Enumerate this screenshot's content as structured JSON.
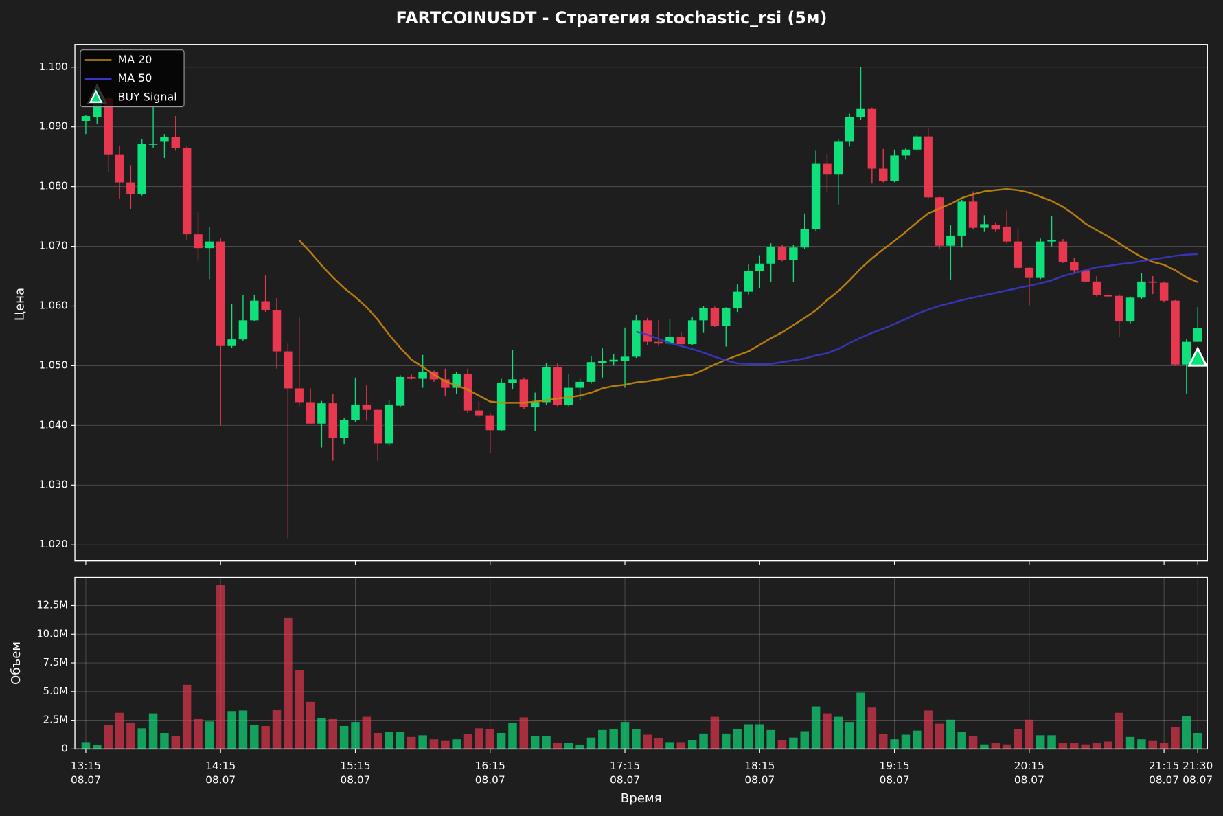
{
  "chart_data": [
    {
      "type": "candlestick",
      "title": "FARTCOINUSDT - Стратегия stochastic_rsi (5м)",
      "ylabel": "Цена",
      "ylim": [
        1.0173,
        1.1038
      ],
      "yticks": [
        {
          "value": 1.02,
          "label": "1.020"
        },
        {
          "value": 1.03,
          "label": "1.030"
        },
        {
          "value": 1.04,
          "label": "1.040"
        },
        {
          "value": 1.05,
          "label": "1.050"
        },
        {
          "value": 1.06,
          "label": "1.060"
        },
        {
          "value": 1.07,
          "label": "1.070"
        },
        {
          "value": 1.08,
          "label": "1.080"
        },
        {
          "value": 1.09,
          "label": "1.090"
        },
        {
          "value": 1.1,
          "label": "1.100"
        }
      ],
      "grid": true,
      "legend": "upper left",
      "up_color": "#0fe07c",
      "down_color": "#e8384f",
      "open": [
        1.091,
        1.0916,
        1.0949,
        1.0854,
        1.0807,
        1.0787,
        1.087,
        1.0875,
        1.0883,
        1.0865,
        1.072,
        1.0697,
        1.0708,
        1.0533,
        1.0544,
        1.0576,
        1.0608,
        1.0593,
        1.0524,
        1.0462,
        1.0439,
        1.0403,
        1.0437,
        1.0379,
        1.0409,
        1.0435,
        1.0426,
        1.037,
        1.0433,
        1.0481,
        1.0478,
        1.049,
        1.0477,
        1.0463,
        1.0486,
        1.0425,
        1.0417,
        1.0392,
        1.0471,
        1.0477,
        1.0431,
        1.0439,
        1.0497,
        1.0434,
        1.0463,
        1.0473,
        1.0505,
        1.0507,
        1.0508,
        1.0515,
        1.0576,
        1.054,
        1.0537,
        1.0548,
        1.0536,
        1.0576,
        1.0596,
        1.0567,
        1.0596,
        1.0624,
        1.0659,
        1.0671,
        1.0699,
        1.0677,
        1.0698,
        1.0729,
        1.0838,
        1.082,
        1.0875,
        1.0916,
        1.0931,
        1.083,
        1.0809,
        1.0852,
        1.0862,
        1.0884,
        1.0782,
        1.0701,
        1.0718,
        1.0775,
        1.0731,
        1.0736,
        1.0733,
        1.0708,
        1.0664,
        1.0647,
        1.0708,
        1.0708,
        1.0674,
        1.066,
        1.0641,
        1.0618,
        1.0617,
        1.0574,
        1.0614,
        1.0641,
        1.0639,
        1.0609,
        1.0502,
        1.054
      ],
      "high": [
        1.092,
        1.096,
        1.0955,
        1.0868,
        1.0836,
        1.088,
        1.0935,
        1.0888,
        1.0918,
        1.0868,
        1.0758,
        1.0732,
        1.0713,
        1.0604,
        1.0618,
        1.0618,
        1.0652,
        1.0613,
        1.0537,
        1.0581,
        1.0462,
        1.0441,
        1.0453,
        1.0412,
        1.048,
        1.0467,
        1.0428,
        1.0442,
        1.0484,
        1.0485,
        1.0518,
        1.0492,
        1.0495,
        1.049,
        1.0495,
        1.044,
        1.042,
        1.0478,
        1.0526,
        1.048,
        1.0455,
        1.0505,
        1.0505,
        1.0486,
        1.0478,
        1.0516,
        1.0529,
        1.052,
        1.0564,
        1.0585,
        1.058,
        1.0576,
        1.0578,
        1.0556,
        1.0582,
        1.06,
        1.0599,
        1.0598,
        1.0636,
        1.067,
        1.0685,
        1.0705,
        1.0703,
        1.0703,
        1.0755,
        1.086,
        1.0855,
        1.088,
        1.0922,
        1.1,
        1.0932,
        1.0863,
        1.0862,
        1.0865,
        1.0887,
        1.0897,
        1.0783,
        1.0735,
        1.0778,
        1.0792,
        1.0752,
        1.074,
        1.076,
        1.073,
        1.0665,
        1.0713,
        1.075,
        1.0712,
        1.068,
        1.0662,
        1.065,
        1.062,
        1.062,
        1.0616,
        1.0655,
        1.065,
        1.0641,
        1.061,
        1.0545,
        1.0598
      ],
      "low": [
        1.0888,
        1.0905,
        1.0825,
        1.078,
        1.0762,
        1.0785,
        1.0865,
        1.0848,
        1.086,
        1.071,
        1.0676,
        1.0645,
        1.04,
        1.053,
        1.0542,
        1.0575,
        1.059,
        1.0495,
        1.0211,
        1.0432,
        1.0402,
        1.0363,
        1.0341,
        1.0368,
        1.0406,
        1.0408,
        1.0341,
        1.0366,
        1.043,
        1.0477,
        1.0463,
        1.0473,
        1.045,
        1.0453,
        1.042,
        1.0414,
        1.0354,
        1.039,
        1.046,
        1.0428,
        1.0391,
        1.0435,
        1.0432,
        1.0432,
        1.0443,
        1.047,
        1.048,
        1.05,
        1.0463,
        1.0513,
        1.0535,
        1.0533,
        1.0535,
        1.0534,
        1.0535,
        1.0555,
        1.0565,
        1.0532,
        1.059,
        1.0618,
        1.063,
        1.064,
        1.0675,
        1.064,
        1.0695,
        1.0725,
        1.079,
        1.077,
        1.0867,
        1.0912,
        1.0805,
        1.0807,
        1.0807,
        1.0845,
        1.086,
        1.078,
        1.0695,
        1.0644,
        1.0698,
        1.0728,
        1.0724,
        1.0724,
        1.0705,
        1.0662,
        1.0601,
        1.0645,
        1.07,
        1.0672,
        1.0655,
        1.064,
        1.0616,
        1.0614,
        1.0548,
        1.0571,
        1.0612,
        1.062,
        1.0606,
        1.05,
        1.0453,
        1.054
      ],
      "close": [
        1.0918,
        1.0941,
        1.0854,
        1.0807,
        1.0787,
        1.0872,
        1.0872,
        1.0883,
        1.0864,
        1.072,
        1.0697,
        1.0708,
        1.0533,
        1.0544,
        1.0576,
        1.0609,
        1.0593,
        1.0524,
        1.0462,
        1.0439,
        1.0403,
        1.0437,
        1.0379,
        1.0409,
        1.0435,
        1.0426,
        1.037,
        1.0435,
        1.0481,
        1.0478,
        1.049,
        1.0477,
        1.0463,
        1.0486,
        1.0425,
        1.0417,
        1.0392,
        1.0471,
        1.0477,
        1.0431,
        1.0439,
        1.0497,
        1.0434,
        1.0463,
        1.0473,
        1.0506,
        1.0508,
        1.051,
        1.0515,
        1.0576,
        1.054,
        1.0537,
        1.0548,
        1.0536,
        1.0576,
        1.0596,
        1.0567,
        1.0596,
        1.0624,
        1.0659,
        1.0671,
        1.0699,
        1.0677,
        1.0698,
        1.0729,
        1.0838,
        1.082,
        1.0875,
        1.0916,
        1.0931,
        1.083,
        1.0809,
        1.0852,
        1.0862,
        1.0884,
        1.0782,
        1.0701,
        1.0718,
        1.0775,
        1.0731,
        1.0737,
        1.0728,
        1.0708,
        1.0664,
        1.0647,
        1.0708,
        1.071,
        1.0674,
        1.066,
        1.0641,
        1.0618,
        1.0616,
        1.0574,
        1.0614,
        1.0641,
        1.0639,
        1.0609,
        1.0502,
        1.054,
        1.0563
      ],
      "series": [
        {
          "name": "MA 20",
          "color": "#c8860d",
          "values": [
            null,
            null,
            null,
            null,
            null,
            null,
            null,
            null,
            null,
            null,
            null,
            null,
            null,
            null,
            null,
            null,
            null,
            null,
            null,
            1.071,
            1.069,
            1.0668,
            1.0648,
            1.063,
            1.0615,
            1.0598,
            1.0577,
            1.0552,
            1.053,
            1.051,
            1.0498,
            1.0485,
            1.0474,
            1.0467,
            1.046,
            1.045,
            1.044,
            1.0438,
            1.0438,
            1.0438,
            1.044,
            1.0442,
            1.0445,
            1.0447,
            1.045,
            1.0455,
            1.0462,
            1.0466,
            1.0468,
            1.0472,
            1.0474,
            1.0477,
            1.048,
            1.0483,
            1.0485,
            1.0493,
            1.0502,
            1.051,
            1.0517,
            1.0524,
            1.0535,
            1.0546,
            1.0556,
            1.0568,
            1.058,
            1.0593,
            1.061,
            1.0625,
            1.0643,
            1.0663,
            1.068,
            1.0695,
            1.0709,
            1.0724,
            1.074,
            1.0755,
            1.0763,
            1.0771,
            1.0781,
            1.0787,
            1.0792,
            1.0794,
            1.0796,
            1.0794,
            1.079,
            1.0783,
            1.0776,
            1.0766,
            1.0753,
            1.0738,
            1.0727,
            1.0717,
            1.0705,
            1.0693,
            1.0682,
            1.0674,
            1.0669,
            1.066,
            1.0648,
            1.064
          ]
        },
        {
          "name": "MA 50",
          "color": "#3a36c8",
          "values": [
            null,
            null,
            null,
            null,
            null,
            null,
            null,
            null,
            null,
            null,
            null,
            null,
            null,
            null,
            null,
            null,
            null,
            null,
            null,
            null,
            null,
            null,
            null,
            null,
            null,
            null,
            null,
            null,
            null,
            null,
            null,
            null,
            null,
            null,
            null,
            null,
            null,
            null,
            null,
            null,
            null,
            null,
            null,
            null,
            null,
            null,
            null,
            null,
            null,
            1.0557,
            1.0552,
            1.0545,
            1.0538,
            1.0533,
            1.0528,
            1.0522,
            1.0515,
            1.0509,
            1.0504,
            1.0503,
            1.0503,
            1.0503,
            1.0506,
            1.0509,
            1.0512,
            1.0517,
            1.0521,
            1.0528,
            1.0538,
            1.0547,
            1.0555,
            1.0562,
            1.057,
            1.0578,
            1.0587,
            1.0594,
            1.06,
            1.0605,
            1.061,
            1.0614,
            1.0618,
            1.0622,
            1.0626,
            1.063,
            1.0634,
            1.0638,
            1.0643,
            1.065,
            1.0655,
            1.066,
            1.0665,
            1.0667,
            1.067,
            1.0672,
            1.0675,
            1.0678,
            1.0681,
            1.0684,
            1.0686,
            1.0687
          ]
        },
        {
          "name": "BUY Signal",
          "color": "#00e676",
          "marker": "triangle",
          "values": [
            null,
            1.0952,
            null,
            null,
            null,
            null,
            null,
            null,
            null,
            null,
            null,
            null,
            null,
            null,
            null,
            null,
            null,
            null,
            null,
            null,
            null,
            null,
            null,
            null,
            null,
            null,
            null,
            null,
            null,
            null,
            null,
            null,
            null,
            null,
            null,
            null,
            null,
            null,
            null,
            null,
            null,
            null,
            null,
            null,
            null,
            null,
            null,
            null,
            null,
            null,
            null,
            null,
            null,
            null,
            null,
            null,
            null,
            null,
            null,
            null,
            null,
            null,
            null,
            null,
            null,
            null,
            null,
            null,
            null,
            null,
            null,
            null,
            null,
            null,
            null,
            null,
            null,
            null,
            null,
            null,
            null,
            null,
            null,
            null,
            null,
            null,
            null,
            null,
            null,
            null,
            null,
            null,
            null,
            null,
            null,
            null,
            null,
            null,
            null,
            1.0512
          ]
        }
      ]
    },
    {
      "type": "bar",
      "ylabel": "Объем",
      "xlabel": "Время",
      "ylim": [
        0,
        14950000
      ],
      "yticks": [
        0,
        {
          "value": 2500000,
          "label": "2.5M"
        },
        {
          "value": 5000000,
          "label": "5.0M"
        },
        {
          "value": 7500000,
          "label": "7.5M"
        },
        {
          "value": 10000000,
          "label": "10.0M"
        },
        {
          "value": 12500000,
          "label": "12.5M"
        }
      ],
      "grid": true,
      "categories": [
        "13:15\n08.07",
        null,
        null,
        null,
        null,
        null,
        null,
        null,
        null,
        null,
        null,
        null,
        "14:15\n08.07",
        null,
        null,
        null,
        null,
        null,
        null,
        null,
        null,
        null,
        null,
        null,
        "15:15\n08.07",
        null,
        null,
        null,
        null,
        null,
        null,
        null,
        null,
        null,
        null,
        null,
        "16:15\n08.07",
        null,
        null,
        null,
        null,
        null,
        null,
        null,
        null,
        null,
        null,
        null,
        "17:15\n08.07",
        null,
        null,
        null,
        null,
        null,
        null,
        null,
        null,
        null,
        null,
        null,
        "18:15\n08.07",
        null,
        null,
        null,
        null,
        null,
        null,
        null,
        null,
        null,
        null,
        null,
        "19:15\n08.07",
        null,
        null,
        null,
        null,
        null,
        null,
        null,
        null,
        null,
        null,
        null,
        "20:15\n08.07",
        null,
        null,
        null,
        null,
        null,
        null,
        null,
        null,
        null,
        null,
        null,
        "21:15\n08.07",
        null,
        null,
        "21:30\n08.07"
      ],
      "values": [
        600000,
        350000,
        2100000,
        3150000,
        2300000,
        1800000,
        3100000,
        1400000,
        1100000,
        5600000,
        2600000,
        2400000,
        14300000,
        3300000,
        3350000,
        2100000,
        2000000,
        3400000,
        11400000,
        6900000,
        4100000,
        2700000,
        2600000,
        2000000,
        2350000,
        2800000,
        1400000,
        1500000,
        1500000,
        1050000,
        1200000,
        850000,
        700000,
        850000,
        1300000,
        1800000,
        1700000,
        1400000,
        2250000,
        2750000,
        1150000,
        1100000,
        550000,
        550000,
        350000,
        1000000,
        1650000,
        1750000,
        2350000,
        1750000,
        1250000,
        950000,
        600000,
        600000,
        750000,
        1350000,
        2800000,
        1350000,
        1700000,
        2150000,
        2150000,
        1650000,
        750000,
        1000000,
        1550000,
        3700000,
        3100000,
        2800000,
        2350000,
        4900000,
        3600000,
        1300000,
        850000,
        1250000,
        1600000,
        3350000,
        2200000,
        2550000,
        1500000,
        1100000,
        400000,
        500000,
        400000,
        1750000,
        2550000,
        1200000,
        1200000,
        500000,
        500000,
        400000,
        500000,
        650000,
        3150000,
        1050000,
        850000,
        700000,
        550000,
        1900000,
        2850000,
        1400000
      ]
    }
  ]
}
